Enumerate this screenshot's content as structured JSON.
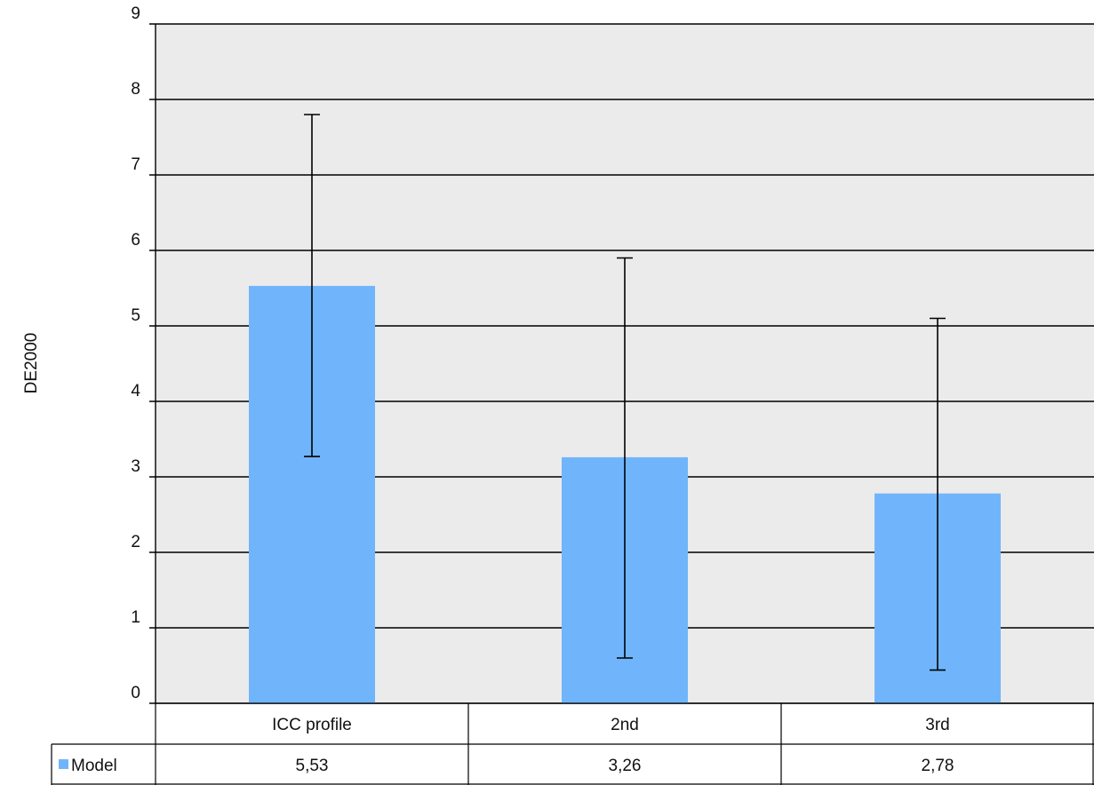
{
  "chart_data": {
    "type": "bar",
    "categories": [
      "ICC profile",
      "2nd",
      "3rd"
    ],
    "series": [
      {
        "name": "Model",
        "values": [
          5.53,
          3.26,
          2.78
        ],
        "value_labels": [
          "5,53",
          "3,26",
          "2,78"
        ],
        "error_low": [
          3.27,
          0.6,
          0.44
        ],
        "error_high": [
          7.8,
          5.9,
          5.1
        ]
      }
    ],
    "title": "",
    "xlabel": "",
    "ylabel": "DE2000",
    "ylim": [
      0,
      9
    ],
    "yticks": [
      0,
      1,
      2,
      3,
      4,
      5,
      6,
      7,
      8,
      9
    ],
    "grid": true,
    "legend": "data-table-row",
    "colors": {
      "bar": "#70b5fb",
      "plot_background": "#ebebeb",
      "gridline": "#000000"
    }
  }
}
